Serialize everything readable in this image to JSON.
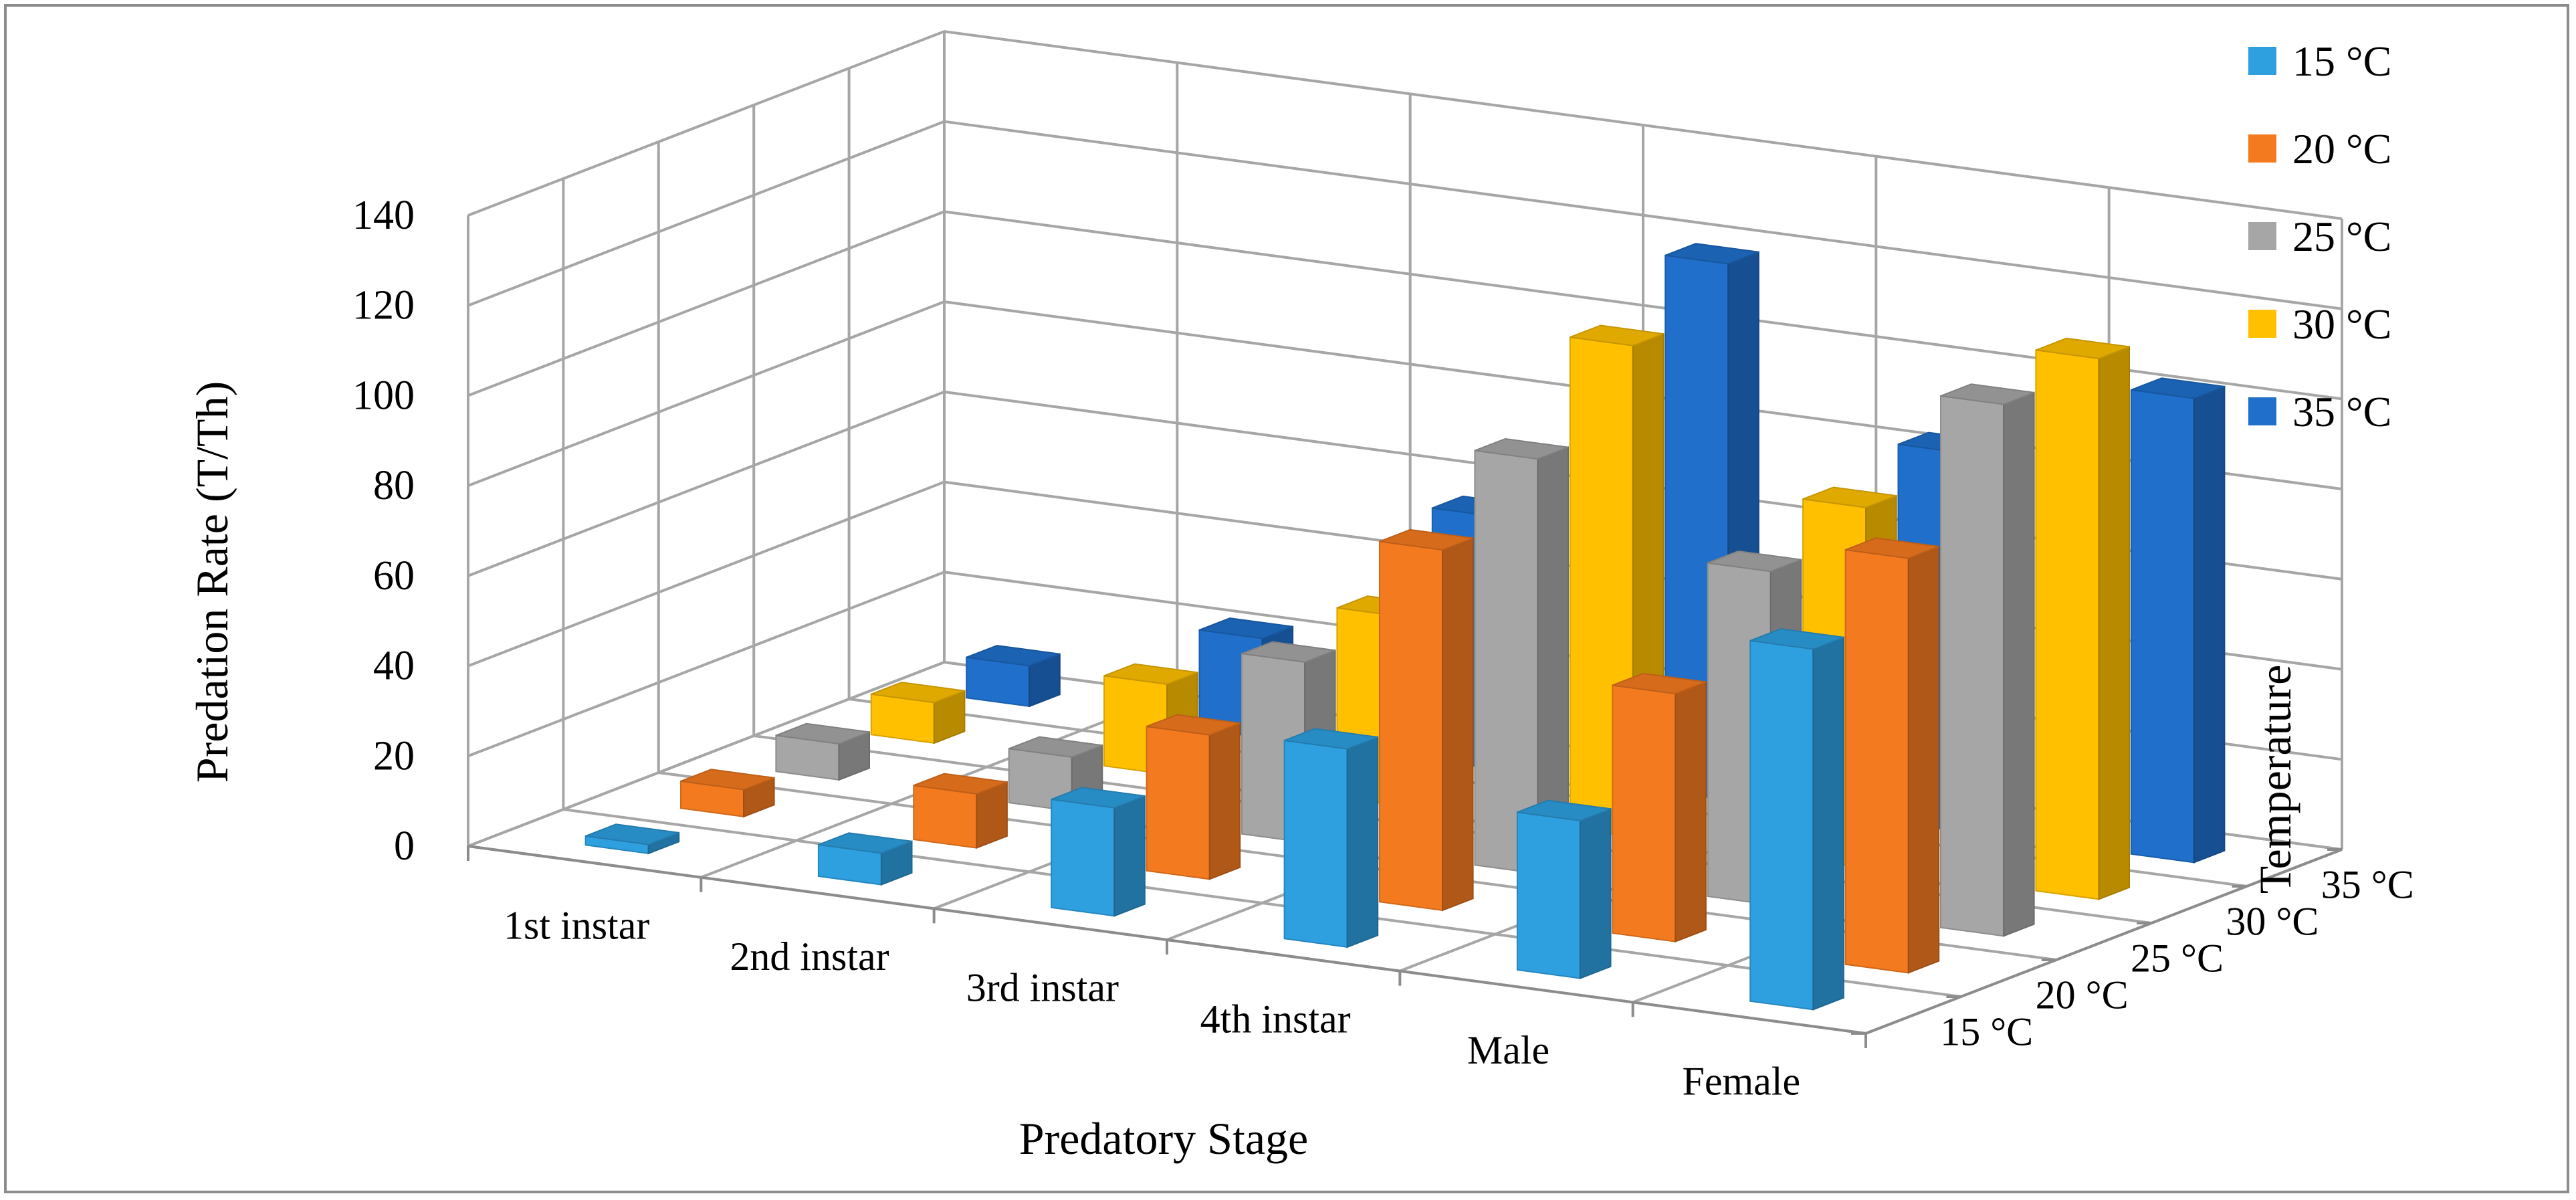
{
  "chart_data": {
    "type": "bar",
    "subtype": "3d-column",
    "categories": [
      "1st instar",
      "2nd instar",
      "3rd instar",
      "4th instar",
      "Male",
      "Female"
    ],
    "depth_categories": [
      "15 °C",
      "20 °C",
      "25 °C",
      "30 °C",
      "35 °C"
    ],
    "series": [
      {
        "name": "15 °C",
        "color": "#2e9fdf",
        "values": [
          2,
          7,
          24,
          44,
          35,
          80
        ]
      },
      {
        "name": "20 °C",
        "color": "#f47a20",
        "values": [
          6,
          12,
          32,
          80,
          55,
          92
        ]
      },
      {
        "name": "25 °C",
        "color": "#a6a6a6",
        "values": [
          8,
          12,
          40,
          92,
          74,
          118
        ]
      },
      {
        "name": "30 °C",
        "color": "#ffc000",
        "values": [
          9,
          20,
          42,
          109,
          80,
          120
        ]
      },
      {
        "name": "35 °C",
        "color": "#1f6fcb",
        "values": [
          9,
          22,
          56,
          119,
          84,
          103
        ]
      }
    ],
    "ylabel": "Predation Rate (T/Th)",
    "xlabel": "Predatory Stage",
    "zlabel": "Temperature",
    "ylim": [
      0,
      140
    ],
    "yticks": [
      "0",
      "20",
      "40",
      "60",
      "80",
      "100",
      "120",
      "140"
    ],
    "grid": true,
    "legend_position": "top-right"
  }
}
